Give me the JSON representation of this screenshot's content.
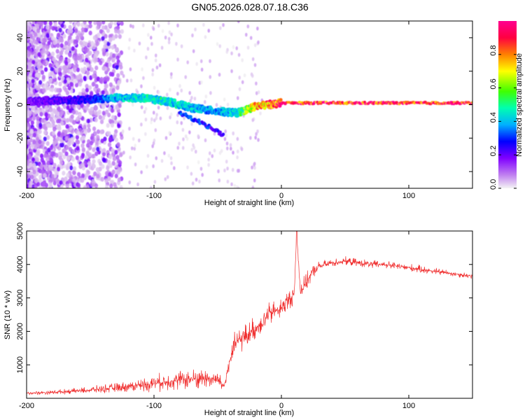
{
  "figure_title": "GN05.2026.028.07.18.C36",
  "colors": {
    "snr_line": "#f03030",
    "frame": "#000000",
    "background": "#ffffff",
    "colormap": [
      "#f0f0f0",
      "#c080f0",
      "#8000ff",
      "#0000ff",
      "#00b0ff",
      "#00ffb0",
      "#40ff00",
      "#ffff00",
      "#ff8000",
      "#ff0040",
      "#ff0090"
    ]
  },
  "chart_data": [
    {
      "type": "heatmap",
      "name": "spectrogram",
      "title": "",
      "xlabel": "Height of straight line (km)",
      "ylabel": "Frequency (Hz)",
      "xlim": [
        -200,
        150
      ],
      "ylim": [
        -50,
        50
      ],
      "x_ticks": [
        -200,
        -100,
        0,
        100
      ],
      "x_tick_labels": [
        "-200",
        "-100",
        "0",
        "100"
      ],
      "y_ticks": [
        -40,
        -20,
        0,
        20,
        40
      ],
      "y_tick_labels": [
        "-40",
        "-20",
        "0",
        "20",
        "40"
      ],
      "colorbar": {
        "label": "Normalized spectral amplitude",
        "range": [
          0,
          1
        ],
        "ticks": [
          0,
          0.2,
          0.4,
          0.6,
          0.8
        ],
        "tick_labels": [
          "0.0",
          "0.2",
          "0.4",
          "0.6",
          "0.8"
        ]
      },
      "ridge": {
        "description_points": [
          {
            "x": -200,
            "f": 2,
            "amp": 0.2
          },
          {
            "x": -150,
            "f": 3,
            "amp": 0.3
          },
          {
            "x": -130,
            "f": 4,
            "amp": 0.45
          },
          {
            "x": -110,
            "f": 4,
            "amp": 0.5
          },
          {
            "x": -90,
            "f": 2,
            "amp": 0.5
          },
          {
            "x": -70,
            "f": -2,
            "amp": 0.45
          },
          {
            "x": -50,
            "f": -4,
            "amp": 0.4
          },
          {
            "x": -35,
            "f": -5,
            "amp": 0.5
          },
          {
            "x": -20,
            "f": -1,
            "amp": 0.8
          },
          {
            "x": 0,
            "f": 1,
            "amp": 0.95
          },
          {
            "x": 50,
            "f": 1,
            "amp": 0.98
          },
          {
            "x": 100,
            "f": 1,
            "amp": 0.98
          },
          {
            "x": 150,
            "f": 1,
            "amp": 0.97
          }
        ],
        "secondary_branch": [
          {
            "x": -80,
            "f": -5,
            "amp": 0.3
          },
          {
            "x": -65,
            "f": -10,
            "amp": 0.3
          },
          {
            "x": -50,
            "f": -16,
            "amp": 0.25
          },
          {
            "x": -45,
            "f": -19,
            "amp": 0.2
          }
        ]
      }
    },
    {
      "type": "line",
      "name": "snr",
      "title": "",
      "xlabel": "Height of straight line (km)",
      "ylabel": "SNR (10 * v/v)",
      "xlim": [
        -200,
        150
      ],
      "ylim": [
        0,
        5000
      ],
      "x_ticks": [
        -200,
        -100,
        0,
        100
      ],
      "x_tick_labels": [
        "-200",
        "-100",
        "0",
        "100"
      ],
      "y_ticks": [
        1000,
        2000,
        3000,
        4000,
        5000
      ],
      "y_tick_labels": [
        "1000",
        "2000",
        "3000",
        "4000",
        "5000"
      ],
      "series": [
        {
          "name": "SNR",
          "x": [
            -200,
            -180,
            -160,
            -140,
            -120,
            -100,
            -80,
            -60,
            -50,
            -45,
            -40,
            -35,
            -30,
            -25,
            -20,
            -15,
            -10,
            -5,
            0,
            5,
            10,
            12,
            15,
            20,
            25,
            30,
            40,
            50,
            60,
            70,
            80,
            90,
            100,
            110,
            120,
            130,
            140,
            150
          ],
          "values": [
            150,
            180,
            220,
            280,
            350,
            450,
            550,
            600,
            550,
            350,
            1200,
            1700,
            1800,
            1950,
            2100,
            2300,
            2500,
            2600,
            2700,
            2900,
            3100,
            4900,
            3200,
            3500,
            3800,
            3950,
            4050,
            4100,
            4050,
            4000,
            4000,
            3950,
            3900,
            3850,
            3800,
            3750,
            3700,
            3650
          ],
          "noise": [
            60,
            80,
            100,
            150,
            200,
            300,
            350,
            400,
            350,
            200,
            500,
            500,
            450,
            450,
            450,
            450,
            450,
            400,
            400,
            400,
            350,
            0,
            350,
            300,
            250,
            180,
            150,
            150,
            150,
            150,
            150,
            150,
            150,
            140,
            130,
            120,
            110,
            100
          ]
        }
      ]
    }
  ]
}
